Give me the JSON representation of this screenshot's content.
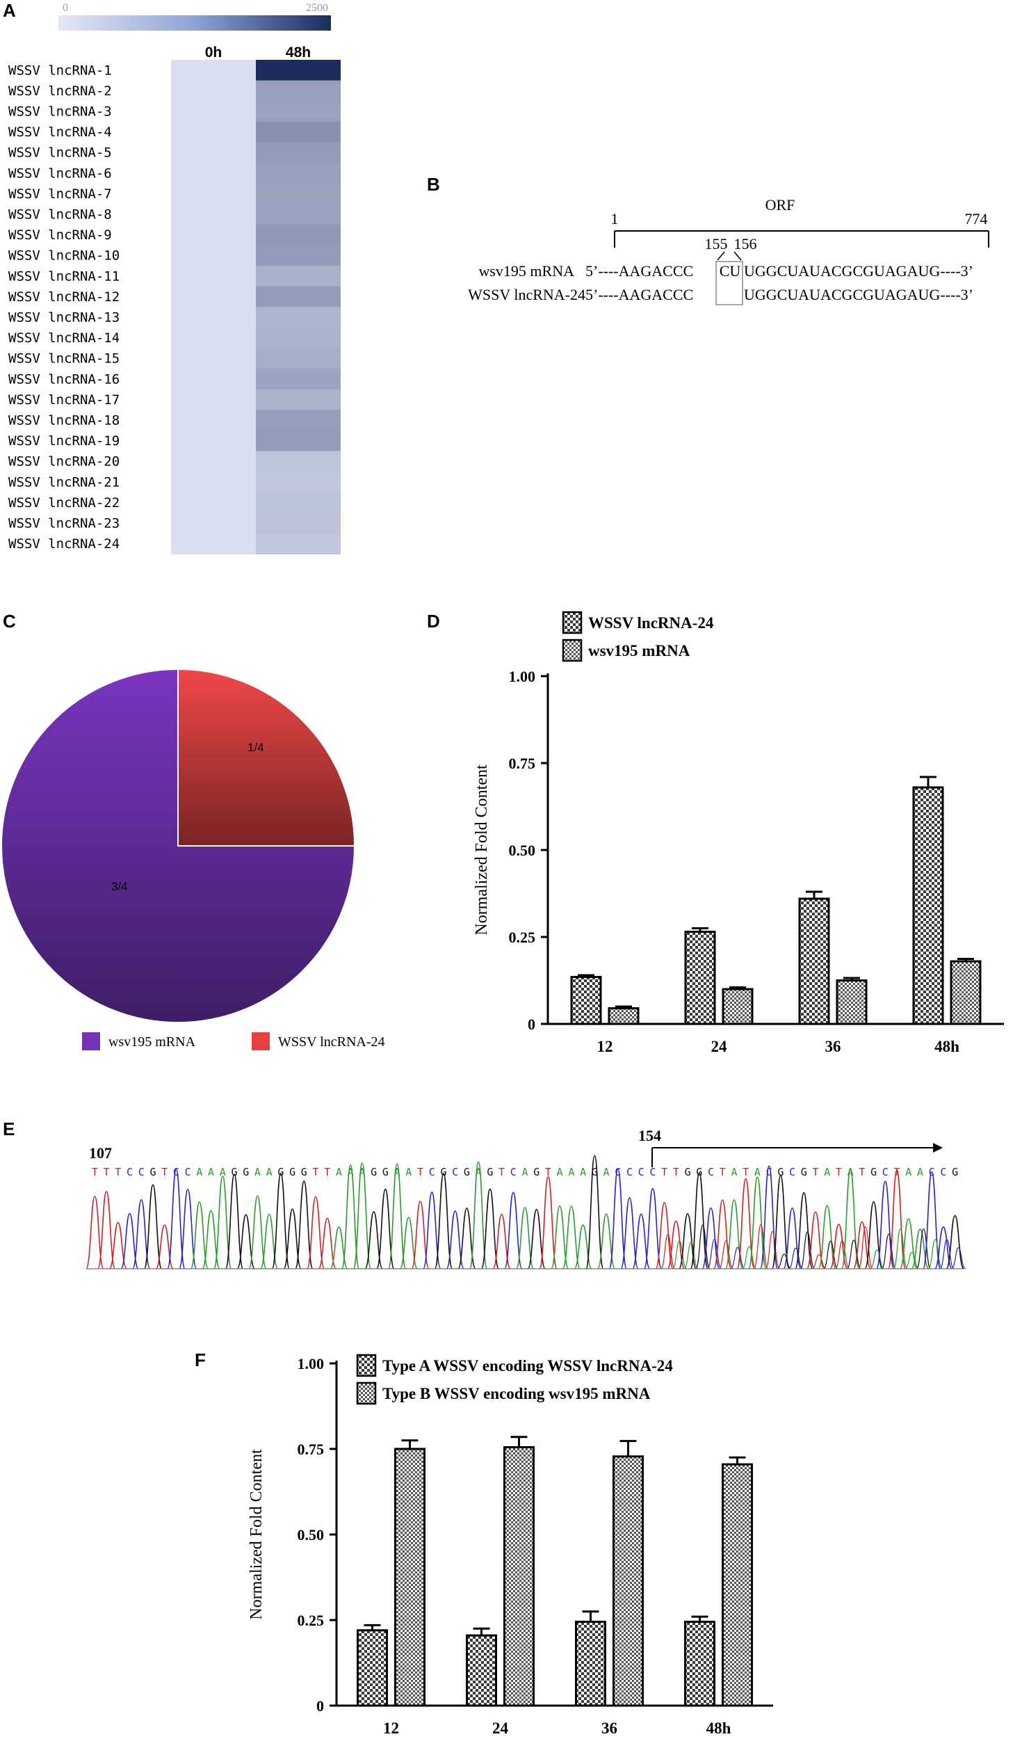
{
  "panels": {
    "A": "A",
    "B": "B",
    "C": "C",
    "D": "D",
    "E": "E",
    "F": "F"
  },
  "colors": {
    "heat_low": "#dde3f3",
    "heat_high": "#1b2b5c",
    "pie_purple": "#7433b4",
    "pie_red": "#e84040",
    "chrom_A": "#2e9a2e",
    "chrom_C": "#2424c8",
    "chrom_G": "#111111",
    "chrom_T": "#d02020"
  },
  "chart_data": [
    {
      "type": "heatmap",
      "panel": "A",
      "scale_min_label": "0",
      "scale_max_label": "2500",
      "vmin": 0,
      "vmax": 2500,
      "columns": [
        "0h",
        "48h"
      ],
      "rows": [
        "WSSV lncRNA-1",
        "WSSV lncRNA-2",
        "WSSV lncRNA-3",
        "WSSV lncRNA-4",
        "WSSV lncRNA-5",
        "WSSV lncRNA-6",
        "WSSV lncRNA-7",
        "WSSV lncRNA-8",
        "WSSV lncRNA-9",
        "WSSV lncRNA-10",
        "WSSV lncRNA-11",
        "WSSV lncRNA-12",
        "WSSV lncRNA-13",
        "WSSV lncRNA-14",
        "WSSV lncRNA-15",
        "WSSV lncRNA-16",
        "WSSV lncRNA-17",
        "WSSV lncRNA-18",
        "WSSV lncRNA-19",
        "WSSV lncRNA-20",
        "WSSV lncRNA-21",
        "WSSV lncRNA-22",
        "WSSV lncRNA-23",
        "WSSV lncRNA-24"
      ],
      "values": [
        [
          50,
          2500
        ],
        [
          50,
          900
        ],
        [
          50,
          880
        ],
        [
          50,
          1100
        ],
        [
          50,
          950
        ],
        [
          50,
          900
        ],
        [
          50,
          870
        ],
        [
          50,
          880
        ],
        [
          50,
          1000
        ],
        [
          50,
          950
        ],
        [
          50,
          680
        ],
        [
          50,
          950
        ],
        [
          50,
          620
        ],
        [
          50,
          640
        ],
        [
          50,
          700
        ],
        [
          50,
          850
        ],
        [
          50,
          650
        ],
        [
          50,
          930
        ],
        [
          50,
          960
        ],
        [
          50,
          400
        ],
        [
          50,
          380
        ],
        [
          50,
          420
        ],
        [
          50,
          430
        ],
        [
          50,
          380
        ]
      ]
    },
    {
      "type": "pie",
      "panel": "C",
      "slices": [
        {
          "name": "wsv195 mRNA",
          "label": "3/4",
          "value": 0.75
        },
        {
          "name": "WSSV lncRNA-24",
          "label": "1/4",
          "value": 0.25
        }
      ],
      "legend": "bottom"
    },
    {
      "type": "bar",
      "panel": "D",
      "categories": [
        "12",
        "24",
        "36",
        "48h"
      ],
      "series": [
        {
          "name": "WSSV lncRNA-24",
          "values": [
            0.135,
            0.265,
            0.36,
            0.68
          ],
          "errors": [
            0.005,
            0.01,
            0.02,
            0.03
          ]
        },
        {
          "name": "wsv195 mRNA",
          "values": [
            0.045,
            0.1,
            0.125,
            0.18
          ],
          "errors": [
            0.005,
            0.005,
            0.007,
            0.007
          ]
        }
      ],
      "ylabel": "Normalized Fold Content",
      "yticks": [
        "0",
        "0.25",
        "0.50",
        "0.75",
        "1.00"
      ],
      "ylim": [
        0,
        1.0
      ],
      "legend": "top-left"
    },
    {
      "type": "bar",
      "panel": "F",
      "categories": [
        "12",
        "24",
        "36",
        "48h"
      ],
      "series": [
        {
          "name": "Type A WSSV encoding WSSV lncRNA-24",
          "values": [
            0.22,
            0.205,
            0.245,
            0.245
          ],
          "errors": [
            0.015,
            0.02,
            0.03,
            0.015
          ]
        },
        {
          "name": "Type B WSSV encoding wsv195 mRNA",
          "values": [
            0.75,
            0.755,
            0.728,
            0.705
          ],
          "errors": [
            0.025,
            0.03,
            0.045,
            0.02
          ]
        }
      ],
      "ylabel": "Normalized Fold Content",
      "yticks": [
        "0",
        "0.25",
        "0.50",
        "0.75",
        "1.00"
      ],
      "ylim": [
        0,
        1.0
      ],
      "legend": "top-left"
    }
  ],
  "panel_b": {
    "orf_label": "ORF",
    "pos_start": "1",
    "pos_end": "774",
    "pos_155": "155",
    "pos_156": "156",
    "row1_name": "wsv195 mRNA",
    "row1_left": "5’----AAGACCC",
    "row1_mid": "CU",
    "row1_right": "UGGCUAUACGCGUAGAUG----3’",
    "row2_name": "WSSV lncRNA-24",
    "row2_left": "5’----AAGACCC",
    "row2_right": "UGGCUAUACGCGUAGAUG----3’"
  },
  "panel_e": {
    "start_pos": "107",
    "marker_pos": "154",
    "sequence": "TTTCCGTCCAAAGGAAGGGTTAAAGGAATCGCGAGTCAGTAAAGACCCCTTGGCTATACGCGTATATGCTAACCG"
  }
}
